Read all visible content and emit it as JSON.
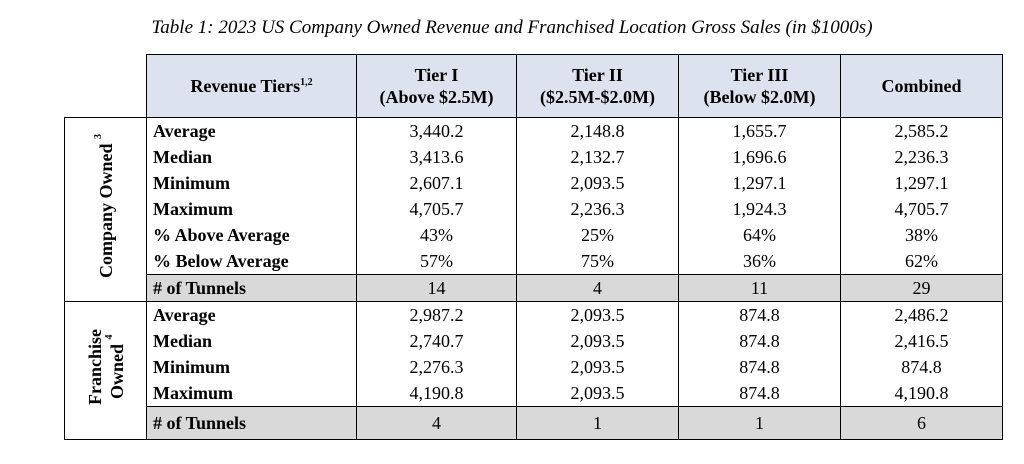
{
  "caption": "Table 1: 2023 US Company Owned Revenue and Franchised Location Gross Sales (in $1000s)",
  "header": {
    "tiers_label": "Revenue Tiers",
    "tiers_sup": "1,2",
    "columns": [
      {
        "line1": "Tier I",
        "line2": "(Above $2.5M)"
      },
      {
        "line1": "Tier II",
        "line2": "($2.5M-$2.0M)"
      },
      {
        "line1": "Tier III",
        "line2": "(Below $2.0M)"
      },
      {
        "line1": "Combined",
        "line2": ""
      }
    ]
  },
  "groups": {
    "company": {
      "label": "Company Owned",
      "sup": "3"
    },
    "franchise": {
      "label1": "Franchise",
      "label2": "Owned",
      "sup": "4"
    }
  },
  "company_rows": [
    {
      "label": "Average",
      "values": [
        "3,440.2",
        "2,148.8",
        "1,655.7",
        "2,585.2"
      ]
    },
    {
      "label": "Median",
      "values": [
        "3,413.6",
        "2,132.7",
        "1,696.6",
        "2,236.3"
      ]
    },
    {
      "label": "Minimum",
      "values": [
        "2,607.1",
        "2,093.5",
        "1,297.1",
        "1,297.1"
      ]
    },
    {
      "label": "Maximum",
      "values": [
        "4,705.7",
        "2,236.3",
        "1,924.3",
        "4,705.7"
      ]
    },
    {
      "label": "% Above Average",
      "values": [
        "43%",
        "25%",
        "64%",
        "38%"
      ]
    },
    {
      "label": "% Below Average",
      "values": [
        "57%",
        "75%",
        "36%",
        "62%"
      ]
    },
    {
      "label": "# of Tunnels",
      "values": [
        "14",
        "4",
        "11",
        "29"
      ]
    }
  ],
  "franchise_rows": [
    {
      "label": "Average",
      "values": [
        "2,987.2",
        "2,093.5",
        "874.8",
        "2,486.2"
      ]
    },
    {
      "label": "Median",
      "values": [
        "2,740.7",
        "2,093.5",
        "874.8",
        "2,416.5"
      ]
    },
    {
      "label": "Minimum",
      "values": [
        "2,276.3",
        "2,093.5",
        "874.8",
        "874.8"
      ]
    },
    {
      "label": "Maximum",
      "values": [
        "4,190.8",
        "2,093.5",
        "874.8",
        "4,190.8"
      ]
    },
    {
      "label": "# of Tunnels",
      "values": [
        "4",
        "1",
        "1",
        "6"
      ]
    }
  ]
}
